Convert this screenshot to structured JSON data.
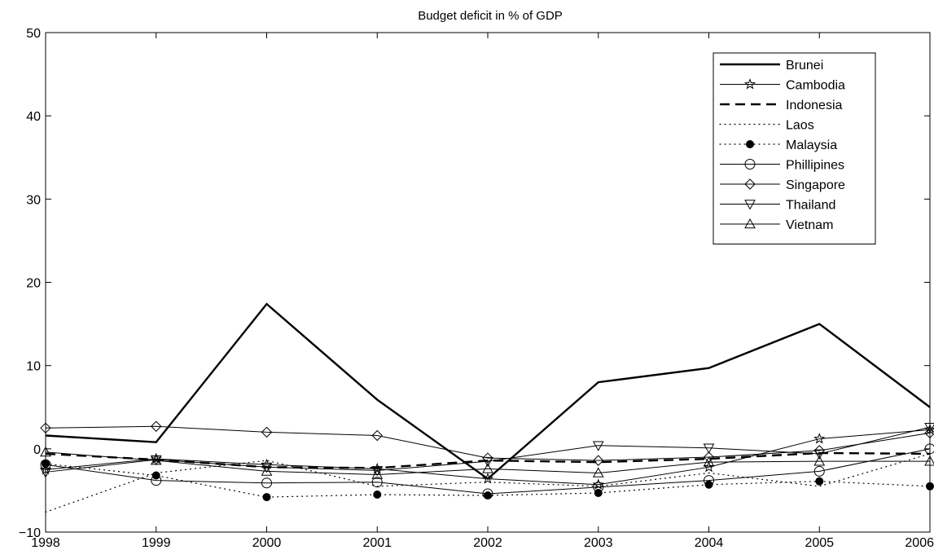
{
  "chart_data": {
    "type": "line",
    "title": "Budget deficit in % of GDP",
    "xlabel": "",
    "ylabel": "",
    "x": [
      1998,
      1999,
      2000,
      2001,
      2002,
      2003,
      2004,
      2005,
      2006
    ],
    "x_tick_labels": [
      "1998",
      "1999",
      "2000",
      "2001",
      "2002",
      "2003",
      "2004",
      "2005",
      "2006"
    ],
    "xlim": [
      1998,
      2006
    ],
    "ylim": [
      -10,
      50
    ],
    "y_ticks": [
      -10,
      0,
      10,
      20,
      30,
      40,
      50
    ],
    "y_tick_labels": [
      "−10",
      "0",
      "10",
      "20",
      "30",
      "40",
      "50"
    ],
    "grid": false,
    "legend_position": "top-right",
    "series": [
      {
        "name": "Brunei",
        "style": "solid-thick",
        "marker": "none",
        "values": [
          1.6,
          0.8,
          17.4,
          5.9,
          -3.6,
          8.0,
          9.7,
          15.0,
          5.0
        ]
      },
      {
        "name": "Cambodia",
        "style": "solid",
        "marker": "star",
        "values": [
          -2.5,
          -1.2,
          -1.9,
          -2.4,
          -3.6,
          -4.3,
          -2.2,
          1.2,
          2.3
        ]
      },
      {
        "name": "Indonesia",
        "style": "dashed",
        "marker": "none",
        "values": [
          -0.6,
          -1.3,
          -2.2,
          -2.3,
          -1.4,
          -1.6,
          -1.2,
          -0.5,
          -0.6
        ]
      },
      {
        "name": "Laos",
        "style": "dotted",
        "marker": "none",
        "values": [
          -7.6,
          -2.9,
          -1.4,
          -4.5,
          -4.0,
          -4.5,
          -2.9,
          -4.5,
          -0.6
        ]
      },
      {
        "name": "Malaysia",
        "style": "dotted",
        "marker": "filled-circle",
        "values": [
          -1.8,
          -3.2,
          -5.8,
          -5.5,
          -5.6,
          -5.3,
          -4.3,
          -3.9,
          -4.5
        ]
      },
      {
        "name": "Phillipines",
        "style": "solid",
        "marker": "circle",
        "values": [
          -1.9,
          -3.8,
          -4.1,
          -4.0,
          -5.4,
          -4.6,
          -3.8,
          -2.7,
          0.0
        ]
      },
      {
        "name": "Singapore",
        "style": "solid",
        "marker": "diamond",
        "values": [
          2.5,
          2.7,
          2.0,
          1.6,
          -1.1,
          -1.4,
          -1.0,
          -0.2,
          1.9
        ]
      },
      {
        "name": "Thailand",
        "style": "solid",
        "marker": "triangle-down",
        "values": [
          -2.8,
          -1.3,
          -2.2,
          -2.6,
          -1.5,
          0.4,
          0.1,
          -0.6,
          2.6
        ]
      },
      {
        "name": "Vietnam",
        "style": "solid",
        "marker": "triangle-up",
        "values": [
          -0.4,
          -1.4,
          -2.7,
          -3.1,
          -2.4,
          -2.9,
          -1.6,
          -1.5,
          -1.5
        ]
      }
    ]
  }
}
